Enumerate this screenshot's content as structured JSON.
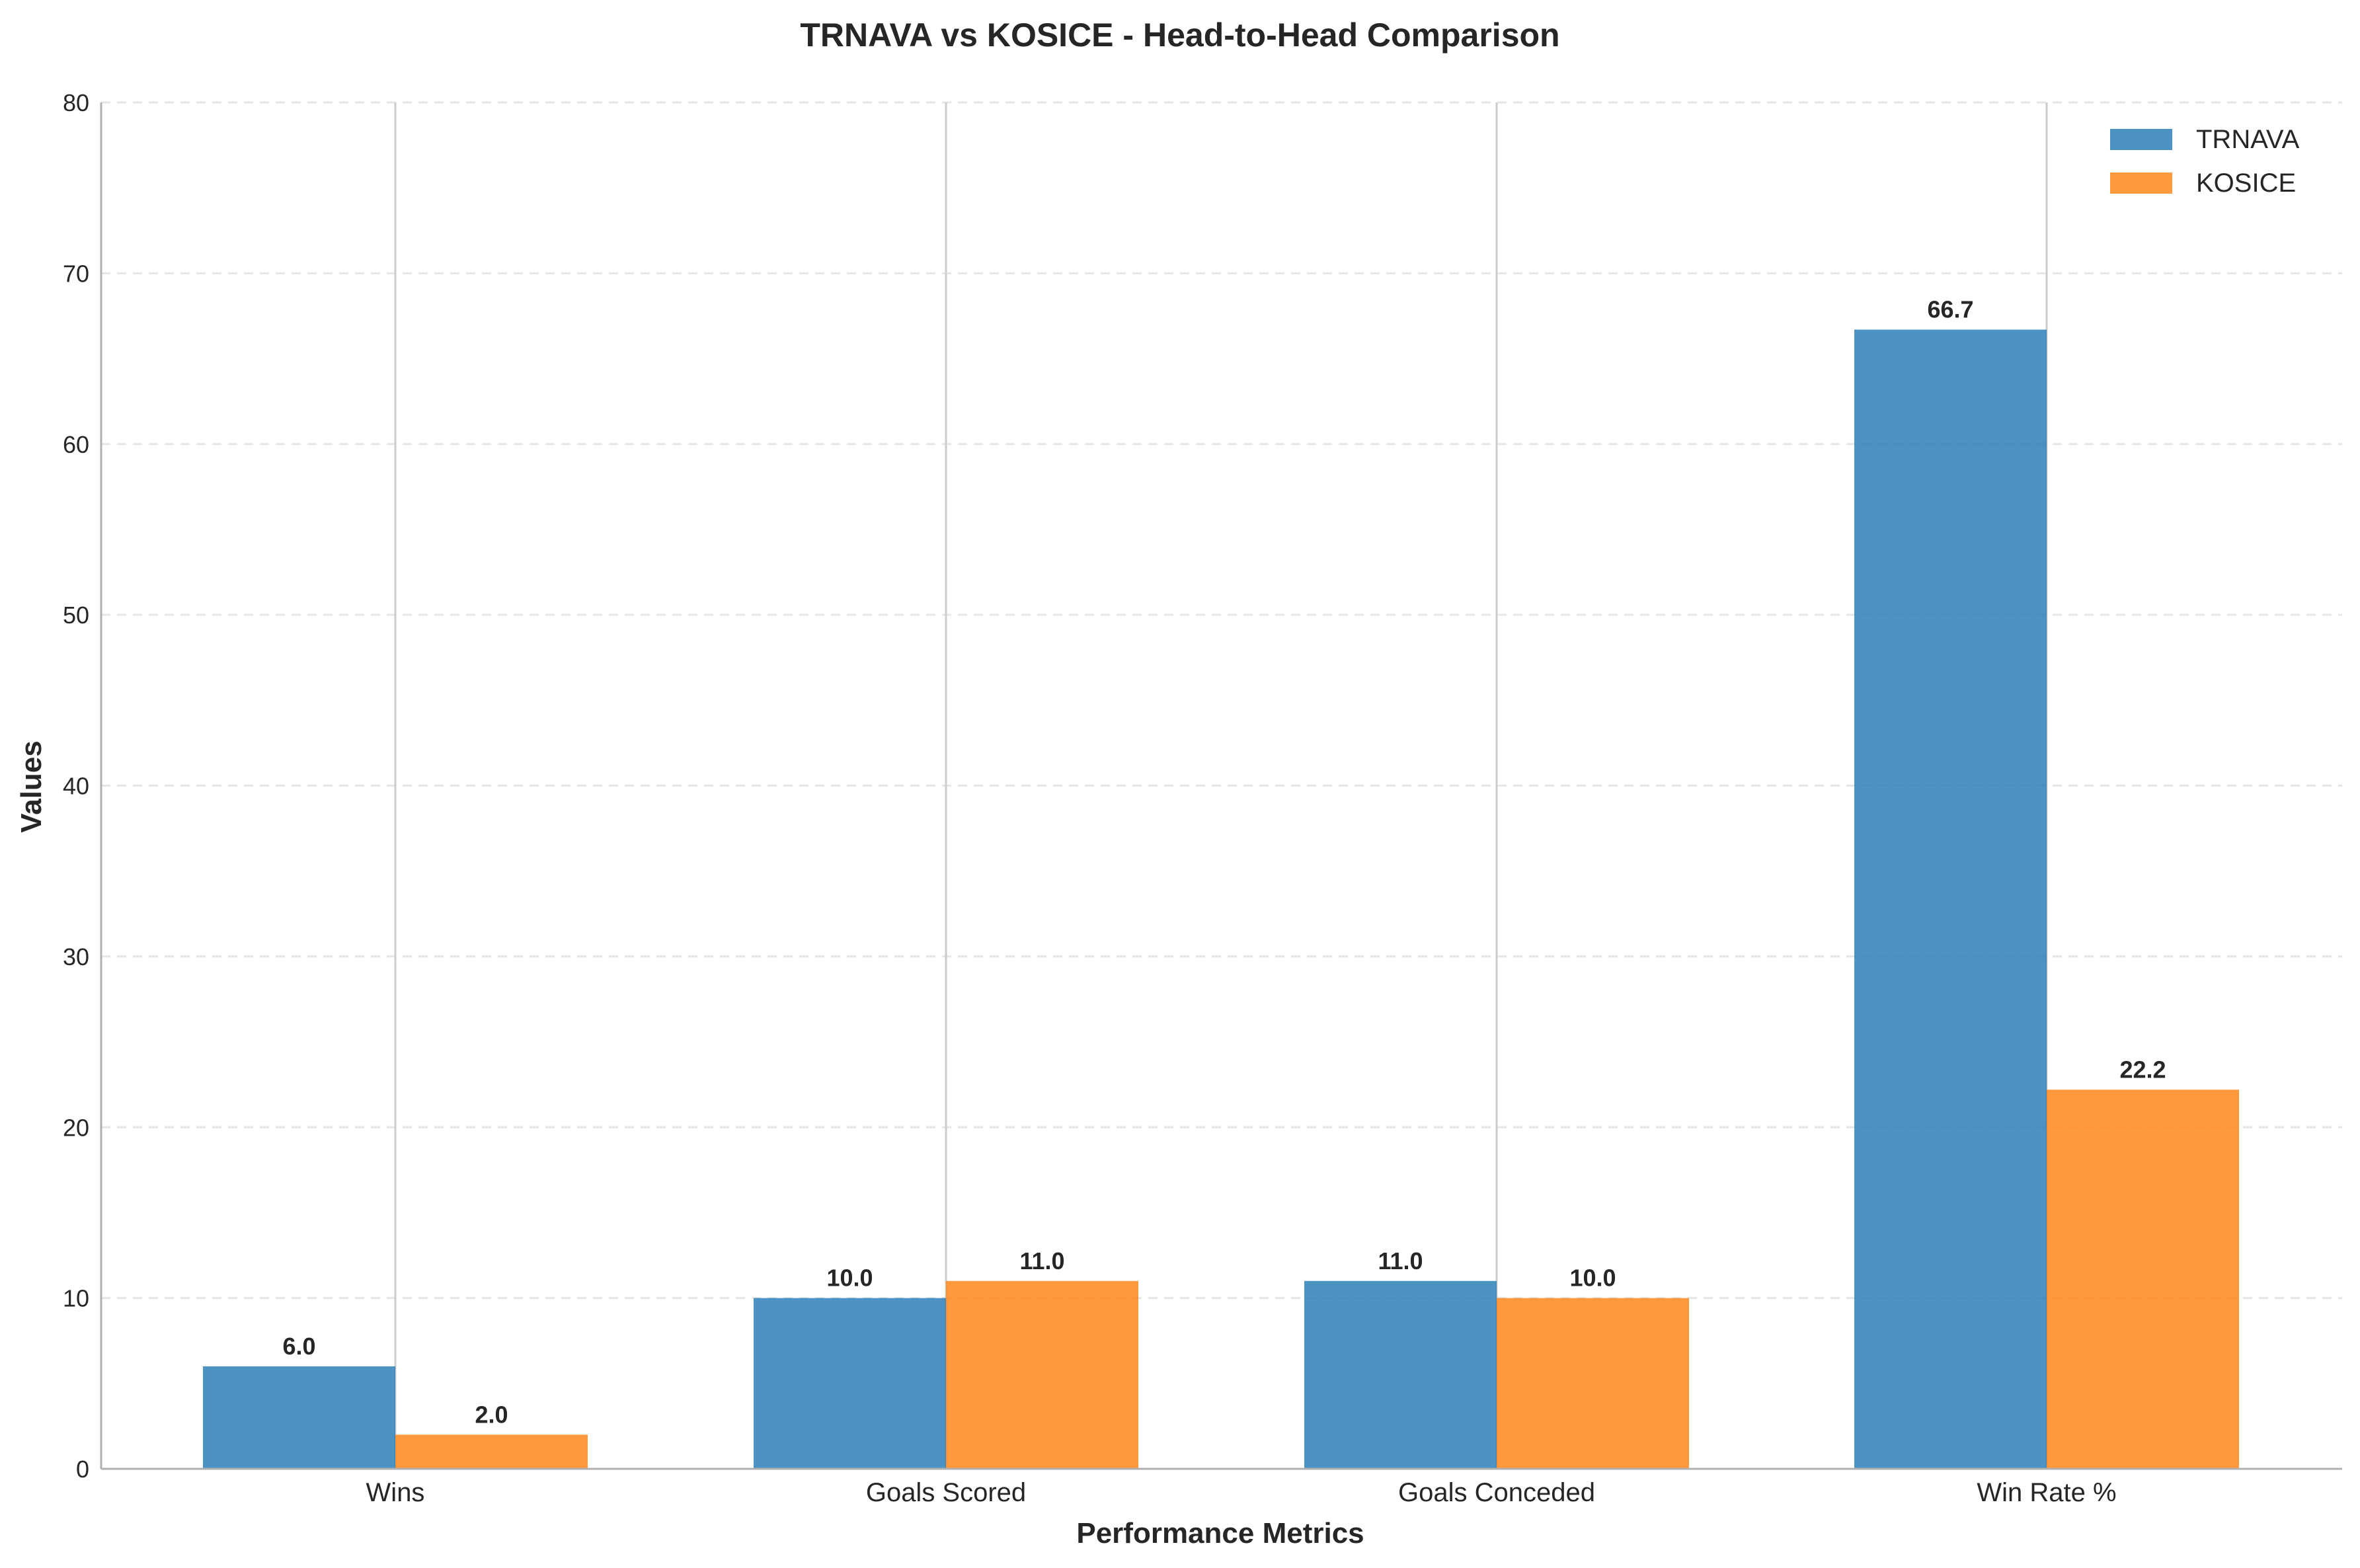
{
  "chart_data": {
    "type": "bar",
    "title": "TRNAVA vs KOSICE - Head-to-Head Comparison",
    "xlabel": "Performance Metrics",
    "ylabel": "Values",
    "categories": [
      "Wins",
      "Goals Scored",
      "Goals Conceded",
      "Win Rate %"
    ],
    "series": [
      {
        "name": "TRNAVA",
        "color": "#1f77b4",
        "values": [
          6.0,
          10.0,
          11.0,
          66.7
        ],
        "labels": [
          "6.0",
          "10.0",
          "11.0",
          "66.7"
        ]
      },
      {
        "name": "KOSICE",
        "color": "#ff7f0e",
        "values": [
          2.0,
          11.0,
          10.0,
          22.2
        ],
        "labels": [
          "2.0",
          "11.0",
          "10.0",
          "22.2"
        ]
      }
    ],
    "ylim": [
      0,
      80
    ],
    "yticks": [
      0,
      10,
      20,
      30,
      40,
      50,
      60,
      70,
      80
    ],
    "ytick_labels": [
      "0",
      "10",
      "20",
      "30",
      "40",
      "50",
      "60",
      "70",
      "80"
    ],
    "grid": "y-dashed, x-solid at category centers",
    "legend": "top-right"
  }
}
